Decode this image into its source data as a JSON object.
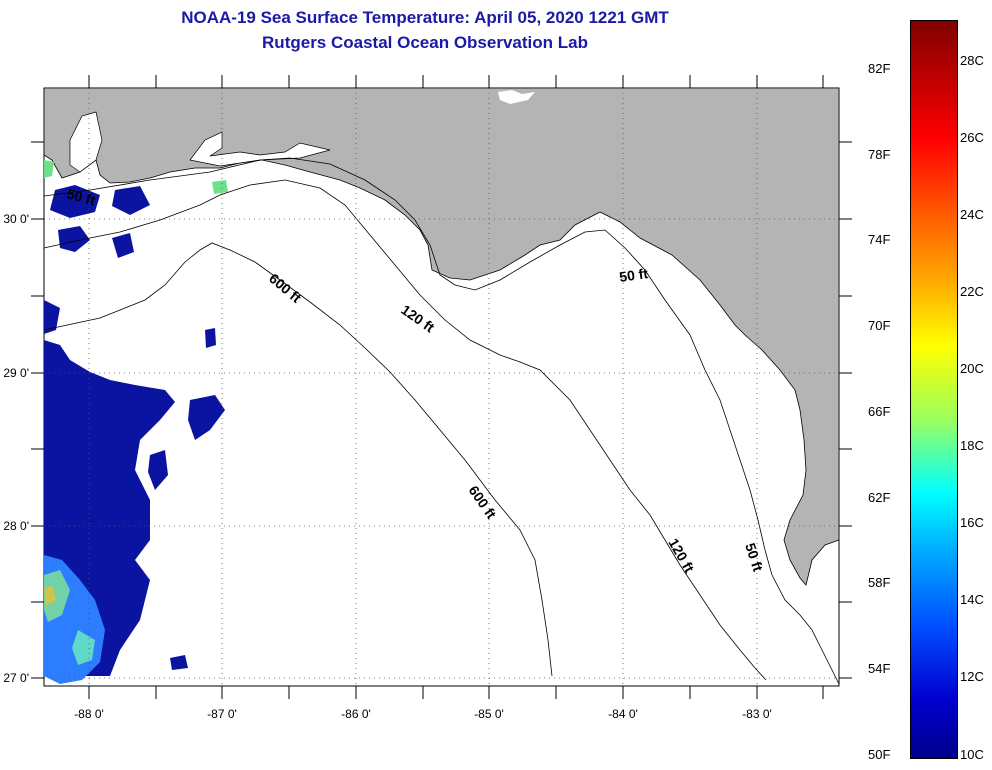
{
  "header": {
    "title": "NOAA-19 Sea Surface Temperature:  April 05, 2020 1221 GMT",
    "subtitle": "Rutgers Coastal Ocean Observation Lab"
  },
  "axes": {
    "lon_labels": [
      "-88 0'",
      "-87 0'",
      "-86 0'",
      "-85 0'",
      "-84 0'",
      "-83 0'"
    ],
    "lat_labels": [
      "30 0'",
      "29 0'",
      "28 0'",
      "27 0'"
    ]
  },
  "contours": {
    "c50_a": "50 ft",
    "c50_b": "50 ft",
    "c50_c": "50 ft",
    "c120_a": "120 ft",
    "c120_b": "120 ft",
    "c600_a": "600 ft",
    "c600_b": "600 ft"
  },
  "colorbar": {
    "f_labels": [
      "82F",
      "78F",
      "74F",
      "70F",
      "66F",
      "62F",
      "58F",
      "54F",
      "50F"
    ],
    "c_labels": [
      "28C",
      "26C",
      "24C",
      "22C",
      "20C",
      "18C",
      "16C",
      "14C",
      "12C",
      "10C"
    ]
  },
  "colors": {
    "land": "#b4b4b4",
    "cold": "#0a14a0",
    "title": "#1a1aa6"
  }
}
